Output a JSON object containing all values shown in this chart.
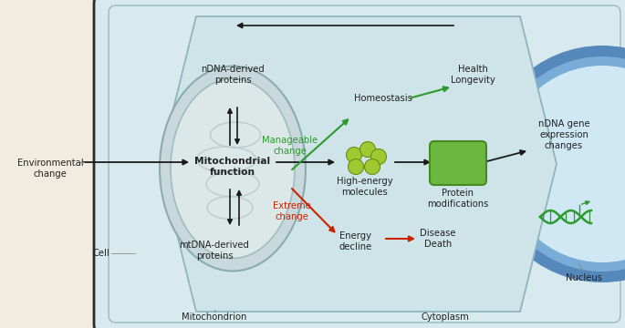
{
  "bg_beige": "#f0ece0",
  "cell_outer_color": "#b0c8d0",
  "cell_fill": "#d8eaee",
  "cell_wall_color": "#2a2a2a",
  "hex_fill": "#cee4e8",
  "hex_edge": "#90b4bc",
  "mito_outer_fill": "#c8d8dc",
  "mito_outer_edge": "#8aacb0",
  "mito_inner_fill": "#dce8e8",
  "mito_inner_edge": "#a0bcbc",
  "mito_cristae_color": "#b0c8c8",
  "nucleus_band_color": "#4a80b8",
  "nucleus_inner_fill": "#ccdeed",
  "nucleus_ring_fill": "#6a9cc8",
  "arrow_black": "#1a1a1a",
  "arrow_green": "#2d9a2d",
  "arrow_red": "#cc2200",
  "text_black": "#222222",
  "text_green": "#2d9a2d",
  "text_red": "#cc2200",
  "protein_mod_fill": "#6ab840",
  "protein_mod_edge": "#4a8820",
  "molecule_fill": "#a0c830",
  "molecule_edge": "#6a9010",
  "dna_color": "#2d9a2d",
  "label_env": "Environmental\nchange",
  "label_cell": "Cell",
  "label_mito_func": "Mitochondrial\nfunction",
  "label_ndna": "nDNA-derived\nproteins",
  "label_mtdna": "mtDNA-derived\nproteins",
  "label_homeostasis": "Homeostasis",
  "label_health": "Health\nLongevity",
  "label_manageable": "Manageable\nchange",
  "label_extreme": "Extreme\nchange",
  "label_highenergy": "High-energy\nmolecules",
  "label_protein_mod": "Protein\nmodifications",
  "label_ndna_gene": "nDNA gene\nexpression\nchanges",
  "label_energy_decline": "Energy\ndecline",
  "label_disease": "Disease\nDeath",
  "label_mitochondrion": "Mitochondrion",
  "label_cytoplasm": "Cytoplasm",
  "label_nucleus": "Nucleus"
}
